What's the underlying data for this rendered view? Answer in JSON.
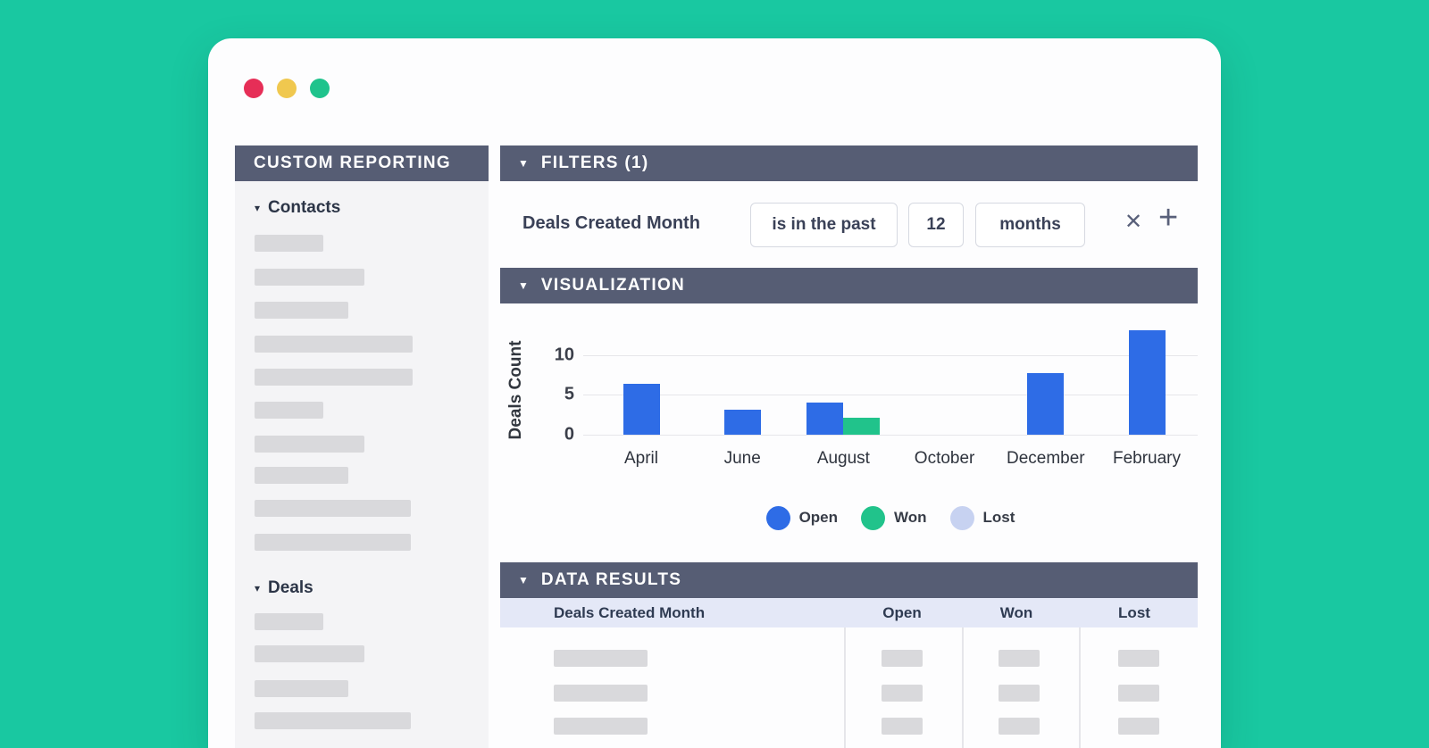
{
  "window": {
    "dots": [
      "#e62e57",
      "#f0c84f",
      "#1fc38c"
    ]
  },
  "icons": {
    "caret": "▼",
    "caret_small": "▾",
    "remove": "✕",
    "add": "+"
  },
  "sidebar": {
    "title": "CUSTOM REPORTING",
    "sections": [
      {
        "label": "Contacts",
        "skeleton_widths": [
          77,
          123,
          105,
          177,
          177,
          77,
          123,
          105,
          175,
          175
        ]
      },
      {
        "label": "Deals",
        "skeleton_widths": [
          77,
          123,
          105,
          175
        ]
      }
    ]
  },
  "filters": {
    "title": "FILTERS (1)",
    "field_label": "Deals Created Month",
    "operator": "is in the past",
    "value": "12",
    "unit": "months"
  },
  "visualization": {
    "title": "VISUALIZATION"
  },
  "chart_data": {
    "type": "bar",
    "categories": [
      "April",
      "June",
      "August",
      "October",
      "December",
      "February"
    ],
    "series": [
      {
        "name": "Open",
        "color": "#2e6ce6",
        "values": [
          6.4,
          3.1,
          4.1,
          0,
          7.8,
          13.2
        ]
      },
      {
        "name": "Won",
        "color": "#21c38b",
        "values": [
          0,
          0,
          2.1,
          0,
          0,
          0
        ]
      },
      {
        "name": "Lost",
        "color": "#c7d2f1",
        "values": [
          0,
          0,
          0,
          0,
          0,
          0
        ]
      }
    ],
    "title": "",
    "xlabel": "",
    "ylabel": "Deals Count",
    "yticks": [
      0,
      5,
      10
    ],
    "ylim": [
      0,
      14
    ],
    "grid": true,
    "legend_position": "bottom"
  },
  "data_results": {
    "title": "DATA RESULTS",
    "columns": [
      "Deals Created Month",
      "Open",
      "Won",
      "Lost"
    ],
    "skeleton_rows": 3
  }
}
